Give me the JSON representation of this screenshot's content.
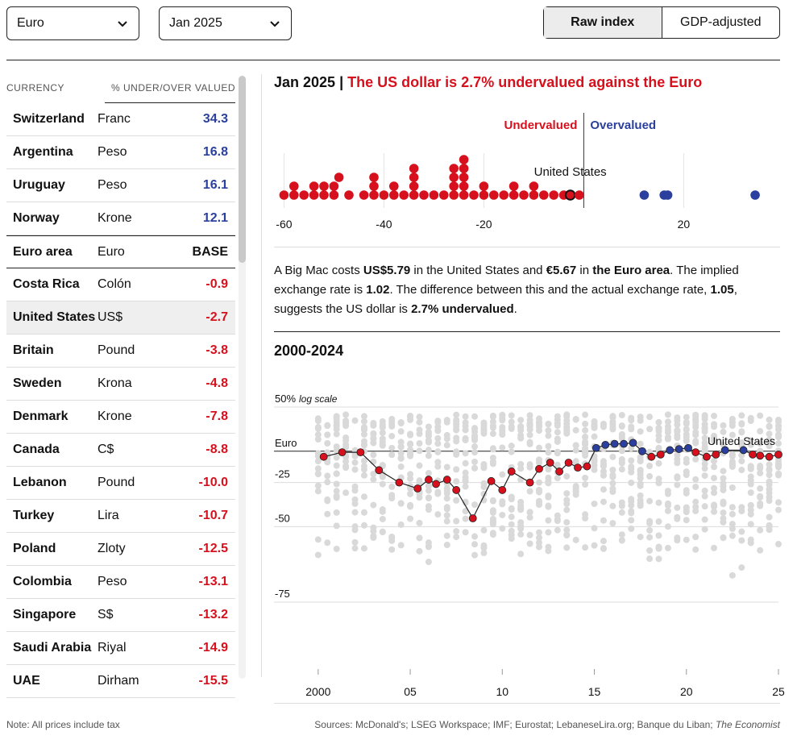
{
  "controls": {
    "currency_select": "Euro",
    "date_select": "Jan 2025",
    "toggle": [
      "Raw index",
      "GDP-adjusted"
    ]
  },
  "table": {
    "headers": [
      "CURRENCY",
      "% UNDER/OVER VALUED"
    ],
    "rows": [
      {
        "country": "Switzerland",
        "unit": "Franc",
        "value": "34.3"
      },
      {
        "country": "Argentina",
        "unit": "Peso",
        "value": "16.8"
      },
      {
        "country": "Uruguay",
        "unit": "Peso",
        "value": "16.1"
      },
      {
        "country": "Norway",
        "unit": "Krone",
        "value": "12.1"
      },
      {
        "country": "Euro area",
        "unit": "Euro",
        "value": "BASE"
      },
      {
        "country": "Costa Rica",
        "unit": "Colón",
        "value": "-0.9"
      },
      {
        "country": "United States",
        "unit": "US$",
        "value": "-2.7"
      },
      {
        "country": "Britain",
        "unit": "Pound",
        "value": "-3.8"
      },
      {
        "country": "Sweden",
        "unit": "Krona",
        "value": "-4.8"
      },
      {
        "country": "Denmark",
        "unit": "Krone",
        "value": "-7.8"
      },
      {
        "country": "Canada",
        "unit": "C$",
        "value": "-8.8"
      },
      {
        "country": "Lebanon",
        "unit": "Pound",
        "value": "-10.0"
      },
      {
        "country": "Turkey",
        "unit": "Lira",
        "value": "-10.7"
      },
      {
        "country": "Poland",
        "unit": "Zloty",
        "value": "-12.5"
      },
      {
        "country": "Colombia",
        "unit": "Peso",
        "value": "-13.1"
      },
      {
        "country": "Singapore",
        "unit": "S$",
        "value": "-13.2"
      },
      {
        "country": "Saudi Arabia",
        "unit": "Riyal",
        "value": "-14.9"
      },
      {
        "country": "UAE",
        "unit": "Dirham",
        "value": "-15.5"
      }
    ]
  },
  "headline": {
    "date": "Jan 2025",
    "separator": "|",
    "text": "The US dollar is 2.7% undervalued against the Euro"
  },
  "description": {
    "p1": "A Big Mac costs ",
    "us_price": "US$5.79",
    "p2": " in the United States and ",
    "eu_price": "€5.67",
    "p3": " in ",
    "eu_area": "the Euro area",
    "p4": ". The implied exchange rate is ",
    "implied": "1.02",
    "p5": ". The difference between this and the actual exchange rate, ",
    "actual": "1.05",
    "p6": ", suggests the US dollar is ",
    "result": "2.7% undervalued",
    "p7": "."
  },
  "timeseries_title": "2000-2024",
  "colors": {
    "undervalued": "#d6111d",
    "overvalued": "#2b3f9e",
    "grey": "#d9d9d9"
  },
  "footer": {
    "note": "Note: All prices include tax",
    "sources": "Sources: McDonald's; LSEG Workspace; IMF; Eurostat; LebaneseLira.org; Banque du Liban; ",
    "sources_italic": "The Economist"
  },
  "chart_data": [
    {
      "type": "scatter",
      "name": "dot-strip",
      "labels": {
        "under": "Undervalued",
        "over": "Overvalued",
        "highlight": "United States"
      },
      "xticks": [
        -60,
        -40,
        -20,
        20
      ],
      "xlim": [
        -62,
        38
      ],
      "base": 0,
      "highlight_value": -2.7,
      "values": [
        -60,
        -58,
        -58,
        -56,
        -54,
        -54,
        -52,
        -52,
        -50,
        -50,
        -49,
        -47,
        -44,
        -42,
        -42,
        -42,
        -40,
        -38,
        -38,
        -36,
        -34,
        -34,
        -34,
        -34,
        -32,
        -30,
        -28,
        -26,
        -26,
        -26,
        -26,
        -24,
        -24,
        -24,
        -24,
        -24,
        -22,
        -20,
        -20,
        -18,
        -16,
        -14,
        -14,
        -12,
        -10,
        -10,
        -8,
        -6,
        -4,
        -2.7,
        -0.9,
        12.1,
        16.1,
        16.8,
        34.3
      ]
    },
    {
      "type": "line",
      "name": "us-dollar-vs-euro",
      "title": "2000-2024",
      "scale": "log",
      "yticks": [
        "50%",
        "Euro",
        "-25",
        "-50",
        "-75"
      ],
      "ytick_values": [
        50,
        0,
        -25,
        -50,
        -75
      ],
      "ytick_note": "log scale",
      "xticks": [
        "2000",
        "05",
        "10",
        "15",
        "20",
        "25"
      ],
      "xtick_values": [
        2000,
        2005,
        2010,
        2015,
        2020,
        2025
      ],
      "xlim": [
        1997.6,
        2025
      ],
      "series_label": "United States",
      "x": [
        2000.3,
        2001.3,
        2002.3,
        2003.3,
        2004.4,
        2005.4,
        2006.0,
        2006.4,
        2007.0,
        2007.5,
        2008.4,
        2009.4,
        2010.0,
        2010.5,
        2011.5,
        2012.0,
        2012.6,
        2013.1,
        2013.6,
        2014.1,
        2014.6,
        2015.1,
        2015.6,
        2016.1,
        2016.6,
        2017.1,
        2017.6,
        2018.1,
        2018.6,
        2019.1,
        2019.6,
        2020.1,
        2020.5,
        2021.1,
        2021.6,
        2022.1,
        2023.1,
        2023.6,
        2024.0,
        2024.5,
        2025.0
      ],
      "y": [
        -5,
        -1,
        -1,
        -16,
        -25,
        -29,
        -23,
        -26,
        -23,
        -30,
        -46,
        -24,
        -30,
        -17,
        -25,
        -15,
        -10,
        -17,
        -10,
        -14,
        -13,
        3,
        6,
        7,
        7,
        8,
        0,
        -5,
        -3,
        1,
        2,
        3,
        -1,
        -5,
        -3,
        1,
        1,
        -3,
        -4,
        -5,
        -3
      ]
    }
  ]
}
